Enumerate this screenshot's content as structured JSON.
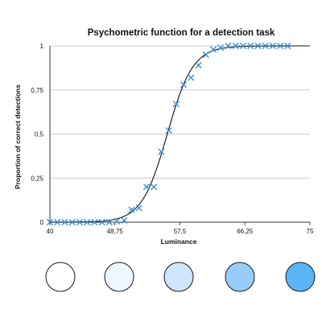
{
  "chart_data": {
    "type": "scatter",
    "title": "Psychometric function for a detection task",
    "xlabel": "Luminance",
    "ylabel": "Proportion of correct detections",
    "xlim": [
      40,
      75
    ],
    "ylim": [
      0,
      1
    ],
    "x_ticks": [
      40,
      48.75,
      57.5,
      66.25,
      75
    ],
    "x_tick_labels": [
      "40",
      "48,75",
      "57,5",
      "66,25",
      "75"
    ],
    "y_ticks": [
      0,
      0.25,
      0.5,
      0.75,
      1
    ],
    "y_tick_labels": [
      "0",
      "0,25",
      "0,5",
      "0,75",
      "1"
    ],
    "grid": "horizontal",
    "legend": "none",
    "marker_color": "#3a8fd9",
    "curve_color": "#111111",
    "series": [
      {
        "marker": "x",
        "x": [
          40,
          41,
          42,
          43,
          44,
          45,
          46,
          47,
          48,
          49,
          50,
          51,
          52,
          53,
          54,
          55,
          56,
          57,
          58,
          59,
          60,
          61,
          62,
          63,
          64,
          65,
          66,
          67,
          68,
          69,
          70,
          71,
          72
        ],
        "y": [
          0,
          0,
          0,
          0,
          0,
          0,
          0,
          0,
          0,
          0.005,
          0.01,
          0.07,
          0.08,
          0.2,
          0.2,
          0.4,
          0.52,
          0.67,
          0.78,
          0.82,
          0.89,
          0.95,
          0.98,
          0.99,
          1,
          1,
          1,
          1,
          1,
          1,
          1,
          1,
          1
        ]
      }
    ],
    "fitted_curve": {
      "type": "logistic",
      "midpoint": 55.8,
      "slope": 0.58
    }
  },
  "stimulus_swatches": [
    {
      "fill": "#ffffff"
    },
    {
      "fill": "#eef6ff"
    },
    {
      "fill": "#cfe6fc"
    },
    {
      "fill": "#99cdf9"
    },
    {
      "fill": "#5bb4f6"
    }
  ]
}
